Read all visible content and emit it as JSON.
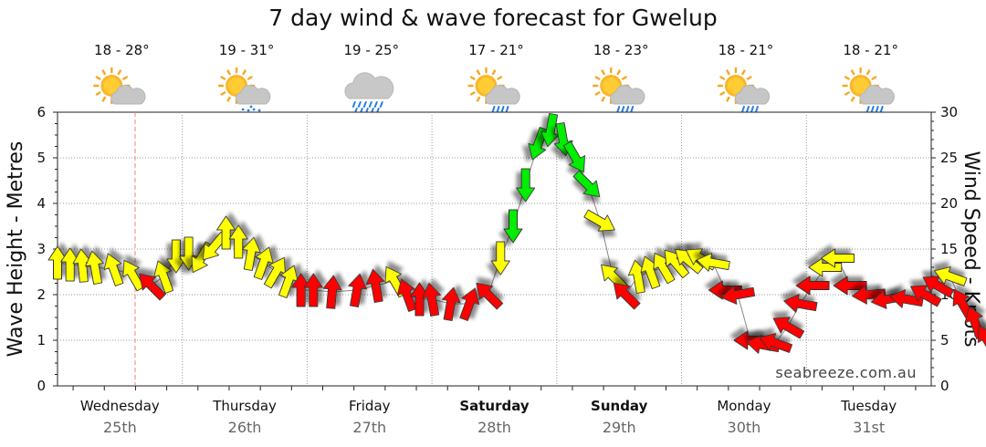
{
  "chart_data": {
    "type": "line",
    "title": "7 day wind & wave forecast for Gwelup",
    "ylabel_left": "Wave Height - Metres",
    "ylabel_right": "Wind Speed - Knots",
    "ylim_left": [
      0,
      6
    ],
    "ylim_right": [
      0,
      30
    ],
    "yticks_left": [
      "0",
      "1",
      "2",
      "3",
      "4",
      "5",
      "6"
    ],
    "yticks_right": [
      "0",
      "5",
      "10",
      "15",
      "20",
      "25",
      "30"
    ],
    "watermark": "seabreeze.com.au",
    "colors": {
      "low": "#ffff00",
      "medium": "#ff0000",
      "high": "#00ee00"
    },
    "days": [
      {
        "name": "Wednesday",
        "date": "25th",
        "temp": "18 - 28°",
        "weather": "partly-cloudy-icon",
        "bold": false
      },
      {
        "name": "Thursday",
        "date": "26th",
        "temp": "19 - 31°",
        "weather": "partly-cloudy-drizzle-icon",
        "bold": false
      },
      {
        "name": "Friday",
        "date": "27th",
        "temp": "19 - 25°",
        "weather": "cloudy-rain-icon",
        "bold": false
      },
      {
        "name": "Saturday",
        "date": "28th",
        "temp": "17 - 21°",
        "weather": "partly-cloudy-showers-icon",
        "bold": true
      },
      {
        "name": "Sunday",
        "date": "29th",
        "temp": "18 - 23°",
        "weather": "partly-cloudy-showers-icon",
        "bold": true
      },
      {
        "name": "Monday",
        "date": "30th",
        "temp": "18 - 21°",
        "weather": "partly-cloudy-showers-icon",
        "bold": false
      },
      {
        "name": "Tuesday",
        "date": "31st",
        "temp": "18 - 21°",
        "weather": "partly-cloudy-showers-icon",
        "bold": false
      }
    ],
    "series": [
      {
        "name": "Wind",
        "points": [
          {
            "day": 0.0,
            "knots": 13.5,
            "dir": 180,
            "level": "low"
          },
          {
            "day": 0.1,
            "knots": 13.3,
            "dir": 180,
            "level": "low"
          },
          {
            "day": 0.2,
            "knots": 13.2,
            "dir": 185,
            "level": "low"
          },
          {
            "day": 0.3,
            "knots": 13.0,
            "dir": 190,
            "level": "low"
          },
          {
            "day": 0.45,
            "knots": 12.8,
            "dir": 200,
            "level": "low"
          },
          {
            "day": 0.6,
            "knots": 12.2,
            "dir": 210,
            "level": "low"
          },
          {
            "day": 0.75,
            "knots": 11.0,
            "dir": 225,
            "level": "medium"
          },
          {
            "day": 0.85,
            "knots": 12.0,
            "dir": 200,
            "level": "low"
          },
          {
            "day": 0.95,
            "knots": 14.2,
            "dir": 0,
            "level": "low"
          },
          {
            "day": 1.05,
            "knots": 14.5,
            "dir": 0,
            "level": "low"
          },
          {
            "day": 1.15,
            "knots": 14.0,
            "dir": 330,
            "level": "low"
          },
          {
            "day": 1.25,
            "knots": 15.2,
            "dir": 320,
            "level": "low"
          },
          {
            "day": 1.35,
            "knots": 16.8,
            "dir": 180,
            "level": "low"
          },
          {
            "day": 1.45,
            "knots": 15.8,
            "dir": 180,
            "level": "low"
          },
          {
            "day": 1.55,
            "knots": 14.5,
            "dir": 170,
            "level": "low"
          },
          {
            "day": 1.65,
            "knots": 13.5,
            "dir": 160,
            "level": "low"
          },
          {
            "day": 1.75,
            "knots": 12.5,
            "dir": 150,
            "level": "low"
          },
          {
            "day": 1.85,
            "knots": 11.5,
            "dir": 160,
            "level": "low"
          },
          {
            "day": 1.95,
            "knots": 10.5,
            "dir": 180,
            "level": "medium"
          },
          {
            "day": 2.05,
            "knots": 10.5,
            "dir": 180,
            "level": "medium"
          },
          {
            "day": 2.2,
            "knots": 10.3,
            "dir": 175,
            "level": "medium"
          },
          {
            "day": 2.4,
            "knots": 10.5,
            "dir": 170,
            "level": "medium"
          },
          {
            "day": 2.55,
            "knots": 11.0,
            "dir": 190,
            "level": "medium"
          },
          {
            "day": 2.7,
            "knots": 11.5,
            "dir": 210,
            "level": "low"
          },
          {
            "day": 2.8,
            "knots": 10.0,
            "dir": 200,
            "level": "medium"
          },
          {
            "day": 2.9,
            "knots": 9.5,
            "dir": 180,
            "level": "medium"
          },
          {
            "day": 3.0,
            "knots": 9.5,
            "dir": 190,
            "level": "medium"
          },
          {
            "day": 3.15,
            "knots": 9.0,
            "dir": 170,
            "level": "medium"
          },
          {
            "day": 3.3,
            "knots": 9.0,
            "dir": 160,
            "level": "medium"
          },
          {
            "day": 3.45,
            "knots": 10.0,
            "dir": 225,
            "level": "medium"
          },
          {
            "day": 3.55,
            "knots": 14.0,
            "dir": 0,
            "level": "low"
          },
          {
            "day": 3.65,
            "knots": 17.5,
            "dir": 0,
            "level": "high"
          },
          {
            "day": 3.75,
            "knots": 22.0,
            "dir": 0,
            "level": "high"
          },
          {
            "day": 3.85,
            "knots": 26.5,
            "dir": 340,
            "level": "high"
          },
          {
            "day": 3.95,
            "knots": 28.0,
            "dir": 350,
            "level": "high"
          },
          {
            "day": 4.05,
            "knots": 27.0,
            "dir": 10,
            "level": "high"
          },
          {
            "day": 4.15,
            "knots": 25.0,
            "dir": 30,
            "level": "high"
          },
          {
            "day": 4.25,
            "knots": 22.0,
            "dir": 45,
            "level": "high"
          },
          {
            "day": 4.35,
            "knots": 18.0,
            "dir": 60,
            "level": "low"
          },
          {
            "day": 4.45,
            "knots": 12.0,
            "dir": 225,
            "level": "low"
          },
          {
            "day": 4.55,
            "knots": 10.0,
            "dir": 225,
            "level": "medium"
          },
          {
            "day": 4.65,
            "knots": 12.0,
            "dir": 190,
            "level": "low"
          },
          {
            "day": 4.75,
            "knots": 12.5,
            "dir": 200,
            "level": "low"
          },
          {
            "day": 4.85,
            "knots": 13.0,
            "dir": 210,
            "level": "low"
          },
          {
            "day": 4.95,
            "knots": 13.5,
            "dir": 220,
            "level": "low"
          },
          {
            "day": 5.05,
            "knots": 13.8,
            "dir": 230,
            "level": "low"
          },
          {
            "day": 5.15,
            "knots": 14.0,
            "dir": 240,
            "level": "low"
          },
          {
            "day": 5.25,
            "knots": 13.5,
            "dir": 260,
            "level": "low"
          },
          {
            "day": 5.35,
            "knots": 10.5,
            "dir": 270,
            "level": "medium"
          },
          {
            "day": 5.45,
            "knots": 10.0,
            "dir": 280,
            "level": "medium"
          },
          {
            "day": 5.55,
            "knots": 5.0,
            "dir": 270,
            "level": "medium"
          },
          {
            "day": 5.65,
            "knots": 4.5,
            "dir": 260,
            "level": "medium"
          },
          {
            "day": 5.75,
            "knots": 4.7,
            "dir": 250,
            "level": "medium"
          },
          {
            "day": 5.85,
            "knots": 6.5,
            "dir": 240,
            "level": "medium"
          },
          {
            "day": 5.95,
            "knots": 9.0,
            "dir": 260,
            "level": "medium"
          },
          {
            "day": 6.05,
            "knots": 11.0,
            "dir": 270,
            "level": "medium"
          },
          {
            "day": 6.15,
            "knots": 13.0,
            "dir": 270,
            "level": "low"
          },
          {
            "day": 6.25,
            "knots": 14.0,
            "dir": 270,
            "level": "low"
          },
          {
            "day": 6.35,
            "knots": 11.0,
            "dir": 270,
            "level": "medium"
          },
          {
            "day": 6.5,
            "knots": 10.0,
            "dir": 275,
            "level": "medium"
          },
          {
            "day": 6.65,
            "knots": 9.5,
            "dir": 280,
            "level": "medium"
          },
          {
            "day": 6.8,
            "knots": 9.5,
            "dir": 260,
            "level": "medium"
          },
          {
            "day": 6.95,
            "knots": 10.0,
            "dir": 240,
            "level": "medium"
          },
          {
            "day": 7.05,
            "knots": 11.0,
            "dir": 240,
            "level": "medium"
          },
          {
            "day": 7.15,
            "knots": 12.0,
            "dir": 250,
            "level": "low"
          },
          {
            "day": 7.25,
            "knots": 9.0,
            "dir": 210,
            "level": "medium"
          },
          {
            "day": 7.35,
            "knots": 7.0,
            "dir": 200,
            "level": "medium"
          },
          {
            "day": 7.45,
            "knots": 5.0,
            "dir": 210,
            "level": "medium"
          },
          {
            "day": 7.55,
            "knots": 3.5,
            "dir": 210,
            "level": "medium"
          }
        ]
      }
    ]
  }
}
